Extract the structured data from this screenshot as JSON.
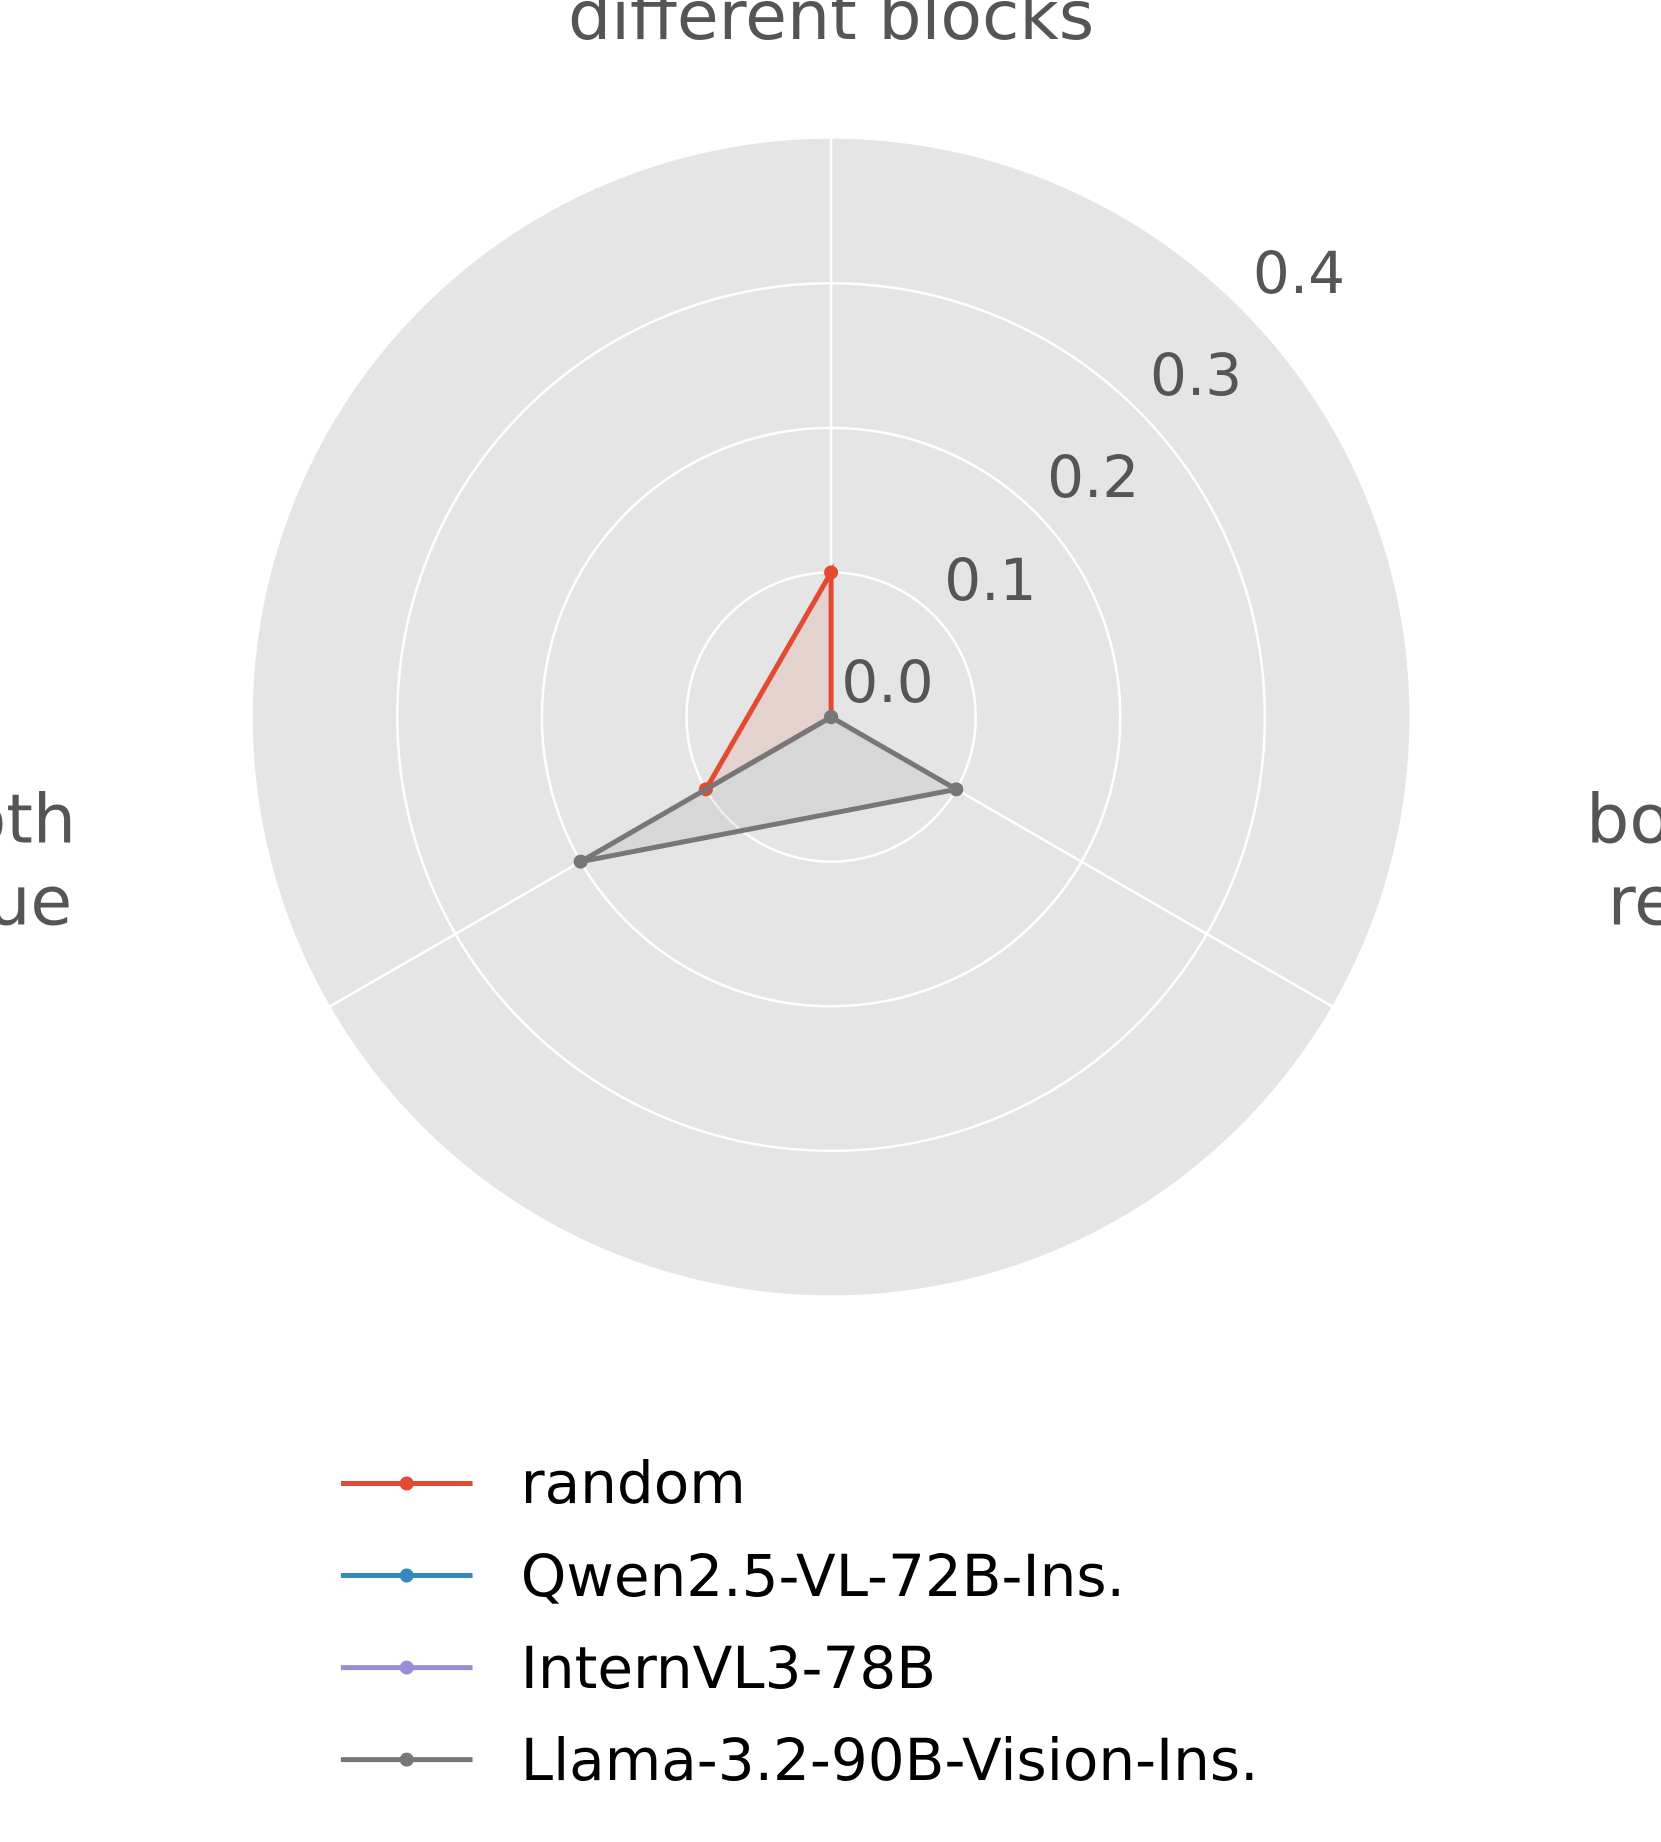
{
  "chart_data": {
    "type": "radar",
    "categories": [
      "different blocks",
      "both red",
      "both\nblue"
    ],
    "series": [
      {
        "name": "random",
        "color": "#E24A33",
        "values": [
          0.1,
          0.0,
          0.1
        ]
      },
      {
        "name": "Qwen2.5-VL-72B-Ins.",
        "color": "#348ABD",
        "values": [
          0.0,
          0.0,
          0.0
        ]
      },
      {
        "name": "InternVL3-78B",
        "color": "#988ED5",
        "values": [
          0.0,
          0.0,
          0.0
        ]
      },
      {
        "name": "Llama-3.2-90B-Vision-Ins.",
        "color": "#777777",
        "values": [
          0.0,
          0.1,
          0.2
        ]
      }
    ],
    "ylim": [
      0.0,
      0.4
    ],
    "yticks": [
      {
        "value": 0.0,
        "label": "0.0"
      },
      0.1,
      0.2,
      0.3,
      0.4
    ],
    "grid": true
  }
}
